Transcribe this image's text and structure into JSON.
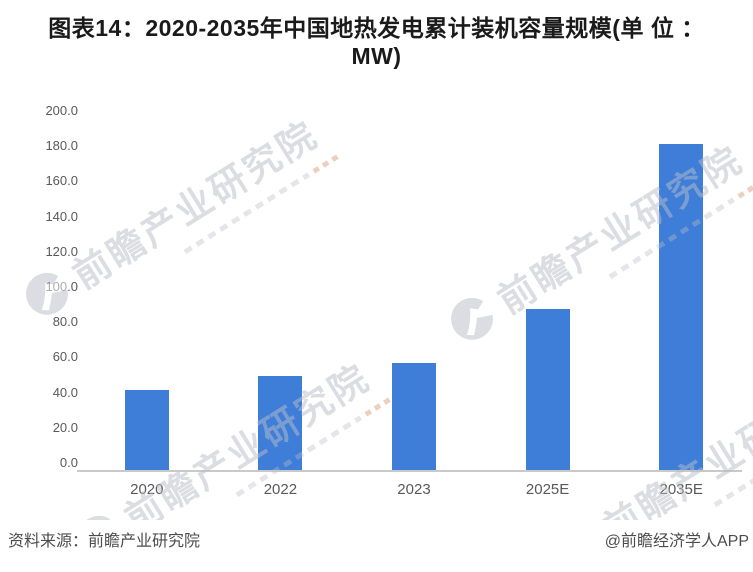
{
  "title": {
    "line1": "图表14：2020-2035年中国地热发电累计装机容量规模(单 位 ：",
    "line2": "MW)"
  },
  "chart_data": {
    "type": "bar",
    "title": "图表14：2020-2035年中国地热发电累计装机容量规模(单 位 ：MW)",
    "categories": [
      "2020",
      "2022",
      "2023",
      "2025E",
      "2035E"
    ],
    "values": [
      45,
      53,
      60,
      90,
      182
    ],
    "xlabel": "",
    "ylabel": "",
    "unit": "MW",
    "ylim": [
      0,
      200
    ],
    "ytick_step": 20,
    "ytick_format": "one-decimal",
    "grid": false,
    "legend": "none",
    "bar_color": "#3E7DD8"
  },
  "watermark": {
    "text": "前瞻产业研究院",
    "logo": "qianzhan-swoosh-circle"
  },
  "footer": {
    "source": "资料来源：前瞻产业研究院",
    "credit": "@前瞻经济学人APP"
  },
  "colors": {
    "bar": "#3E7DD8",
    "axis_line": "#c9c9c9",
    "tick_label": "#595959",
    "title": "#1a1a1a",
    "footer": "#4c4c4c",
    "watermark": "#b9bdc7",
    "background": "#ffffff"
  }
}
